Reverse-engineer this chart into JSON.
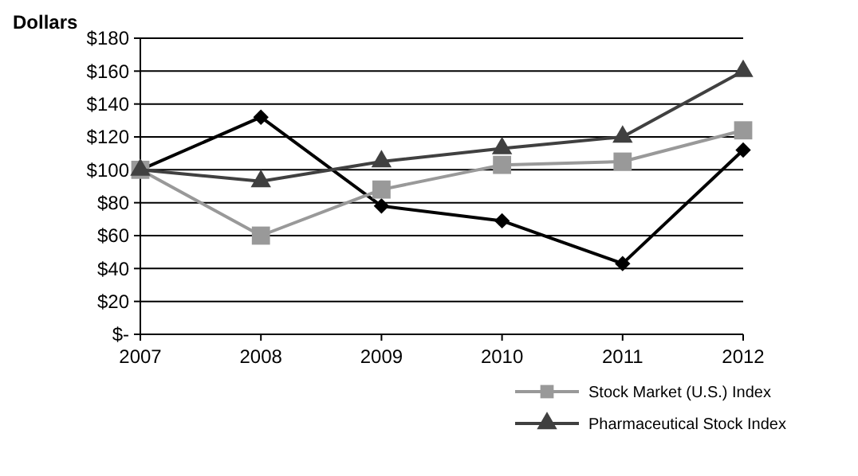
{
  "chart_data": {
    "type": "line",
    "ylabel": "Dollars",
    "categories": [
      "2007",
      "2008",
      "2009",
      "2010",
      "2011",
      "2012"
    ],
    "series": [
      {
        "color": "#000000",
        "marker": "diamond",
        "values": [
          100,
          132,
          78,
          69,
          43,
          112
        ]
      },
      {
        "name": "Stock Market (U.S.) Index",
        "color": "#999999",
        "marker": "square",
        "values": [
          100,
          60,
          88,
          103,
          105,
          124
        ]
      },
      {
        "name": "Pharmaceutical Stock Index",
        "color": "#404040",
        "marker": "triangle",
        "values": [
          100,
          93,
          105,
          113,
          120,
          160
        ]
      }
    ],
    "ylim": [
      0,
      180
    ],
    "yticks": [
      {
        "value": 0,
        "label": "$-"
      },
      {
        "value": 20,
        "label": "$20"
      },
      {
        "value": 40,
        "label": "$40"
      },
      {
        "value": 60,
        "label": "$60"
      },
      {
        "value": 80,
        "label": "$80"
      },
      {
        "value": 100,
        "label": "$100"
      },
      {
        "value": 120,
        "label": "$120"
      },
      {
        "value": 140,
        "label": "$140"
      },
      {
        "value": 160,
        "label": "$160"
      },
      {
        "value": 180,
        "label": "$180"
      }
    ],
    "grid": "y",
    "legend": "bottom right",
    "line_style": "solid"
  }
}
